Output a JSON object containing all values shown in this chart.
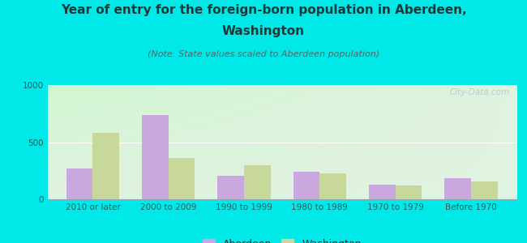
{
  "title_line1": "Year of entry for the foreign-born population in Aberdeen,",
  "title_line2": "Washington",
  "subtitle": "(Note: State values scaled to Aberdeen population)",
  "categories": [
    "2010 or later",
    "2000 to 2009",
    "1990 to 1999",
    "1980 to 1989",
    "1970 to 1979",
    "Before 1970"
  ],
  "aberdeen_values": [
    270,
    740,
    205,
    240,
    130,
    185
  ],
  "washington_values": [
    580,
    360,
    295,
    225,
    120,
    155
  ],
  "aberdeen_color": "#c9a8e0",
  "washington_color": "#c8d89a",
  "background_color": "#00e8e8",
  "ylim": [
    0,
    1000
  ],
  "yticks": [
    0,
    500,
    1000
  ],
  "legend_labels": [
    "Aberdeen",
    "Washington"
  ],
  "watermark": "City-Data.com",
  "bar_width": 0.35,
  "title_fontsize": 11,
  "subtitle_fontsize": 8,
  "tick_fontsize": 7.5,
  "legend_fontsize": 9,
  "title_color": "#1a3a3a",
  "subtitle_color": "#4a6a6a",
  "tick_color": "#2a5a5a"
}
